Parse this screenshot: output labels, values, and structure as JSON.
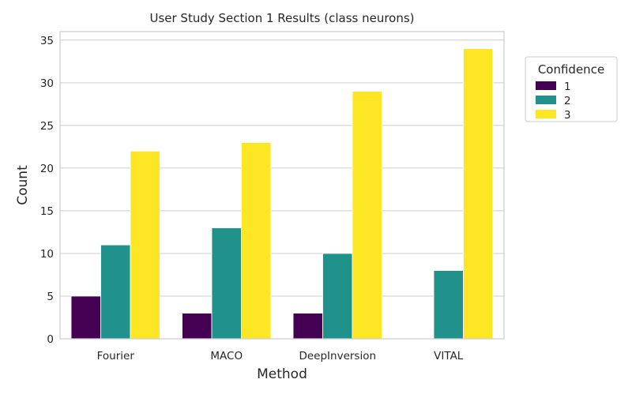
{
  "chart_data": {
    "type": "bar",
    "title": "User Study Section 1 Results (class neurons)",
    "xlabel": "Method",
    "ylabel": "Count",
    "categories": [
      "Fourier",
      "MACO",
      "DeepInversion",
      "VITAL"
    ],
    "series": [
      {
        "name": "1",
        "color": "#440154",
        "values": [
          5,
          3,
          3,
          0
        ]
      },
      {
        "name": "2",
        "color": "#21918c",
        "values": [
          11,
          13,
          10,
          8
        ]
      },
      {
        "name": "3",
        "color": "#fde725",
        "values": [
          22,
          23,
          29,
          34
        ]
      }
    ],
    "ylim": [
      0,
      36
    ],
    "yticks": [
      0,
      5,
      10,
      15,
      20,
      25,
      30,
      35
    ],
    "grid": true,
    "legend": {
      "title": "Confidence",
      "position": "outside-right"
    }
  }
}
